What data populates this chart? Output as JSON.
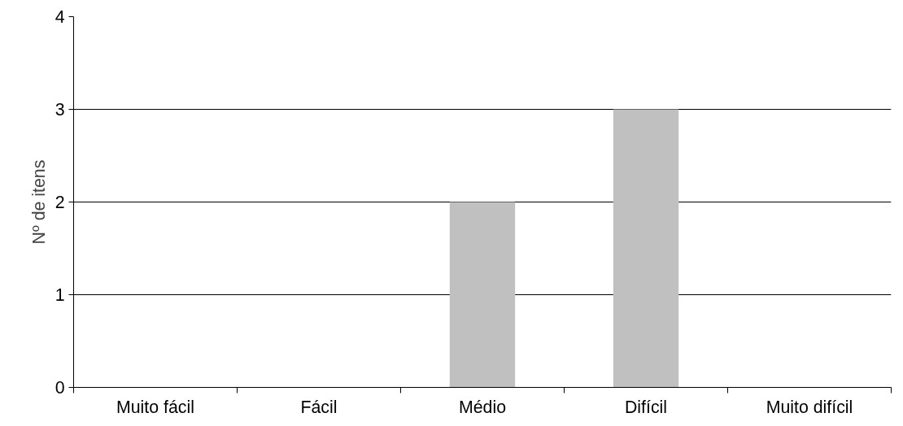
{
  "chart_data": {
    "type": "bar",
    "ylabel": "Nº de itens",
    "categories": [
      "Muito fácil",
      "Fácil",
      "Médio",
      "Difícil",
      "Muito difícil"
    ],
    "values": [
      0,
      0,
      2,
      3,
      0
    ],
    "color": "#c0c0c0",
    "ylim": [
      0,
      4
    ],
    "yticks": [
      0,
      1,
      2,
      3,
      4
    ],
    "grid": "y"
  }
}
